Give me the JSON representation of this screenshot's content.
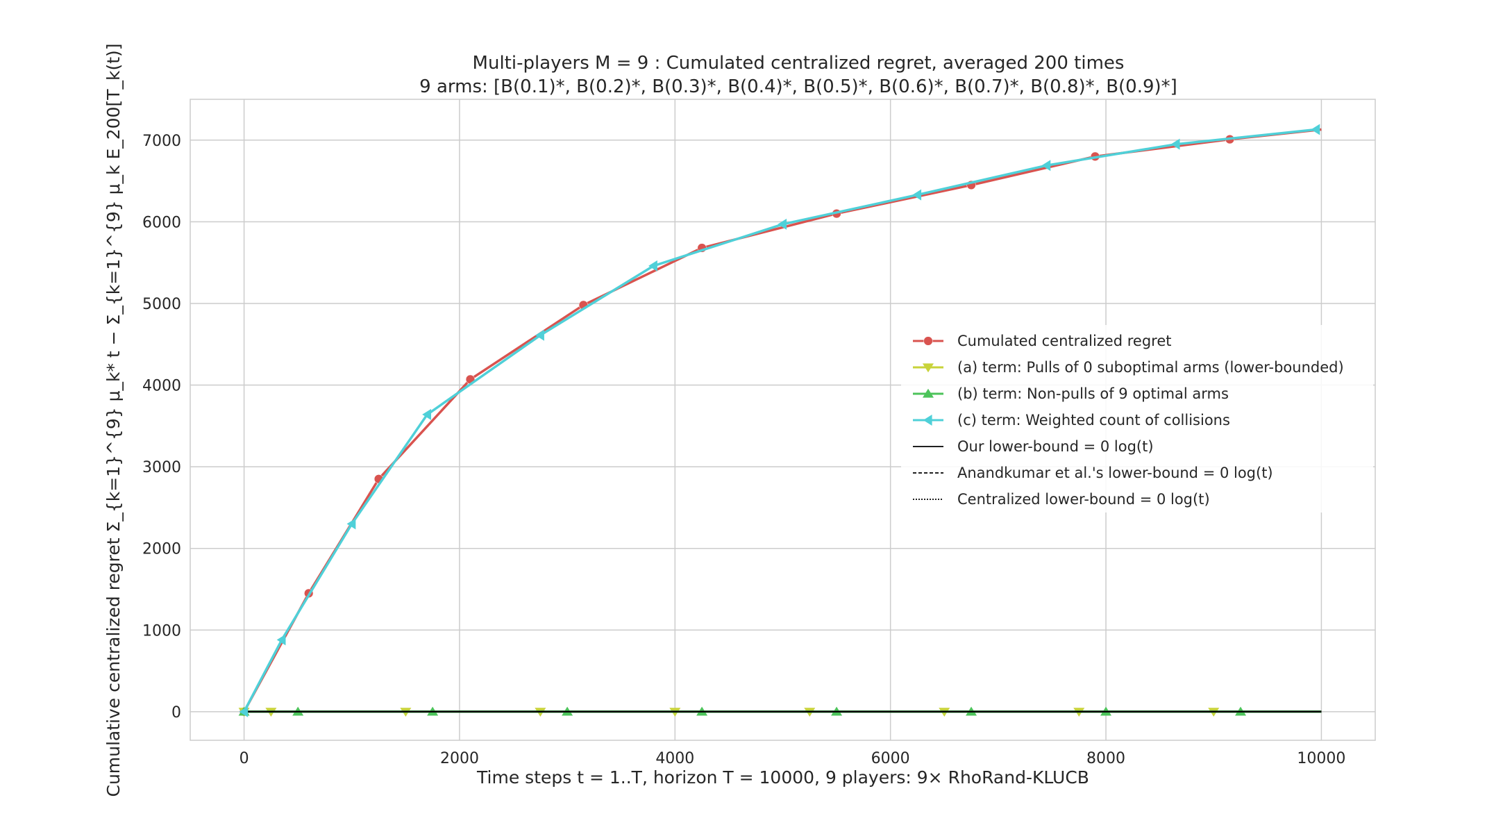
{
  "chart_data": {
    "type": "line",
    "title": "Multi-players M = 9 : Cumulated centralized regret, averaged 200 times",
    "subtitle": "9 arms: [B(0.1)*, B(0.2)*, B(0.3)*, B(0.4)*, B(0.5)*, B(0.6)*, B(0.7)*, B(0.8)*, B(0.9)*]",
    "xlabel": "Time steps t = 1..T, horizon T = 10000, 9 players: 9× RhoRand-KLUCB",
    "ylabel": "Cumulative centralized regret Σ_{k=1}^{9} μ_k* t − Σ_{k=1}^{9} μ_k E_200[T_k(t)]",
    "xlim": [
      -500,
      10500
    ],
    "ylim": [
      -350,
      7500
    ],
    "xticks": [
      "0",
      "2000",
      "4000",
      "6000",
      "8000",
      "10000"
    ],
    "yticks": [
      "0",
      "1000",
      "2000",
      "3000",
      "4000",
      "5000",
      "6000",
      "7000"
    ],
    "grid": true,
    "legend_position": "center-right",
    "series": [
      {
        "name": "Cumulated centralized regret",
        "color": "#d9534f",
        "marker": "circle",
        "x": [
          0,
          600,
          1250,
          2100,
          3150,
          4250,
          5500,
          6750,
          7900,
          9150,
          10000
        ],
        "y": [
          0,
          1450,
          2850,
          4070,
          4980,
          5680,
          6100,
          6450,
          6800,
          7010,
          7130
        ]
      },
      {
        "name": "(a) term: Pulls of 0 suboptimal arms (lower-bounded)",
        "color": "#c8d33a",
        "marker": "triangle-down",
        "x": [
          0,
          250,
          1500,
          2750,
          4000,
          5250,
          6500,
          7750,
          9000,
          10000
        ],
        "y": [
          0,
          0,
          0,
          0,
          0,
          0,
          0,
          0,
          0,
          0
        ]
      },
      {
        "name": "(b) term: Non-pulls of 9 optimal arms",
        "color": "#4cc35a",
        "marker": "triangle-up",
        "x": [
          0,
          500,
          1750,
          3000,
          4250,
          5500,
          6750,
          8000,
          9250,
          10000
        ],
        "y": [
          0,
          0,
          0,
          0,
          0,
          0,
          0,
          0,
          0,
          0
        ]
      },
      {
        "name": "(c) term: Weighted count of collisions",
        "color": "#4fd0d8",
        "marker": "triangle-left",
        "x": [
          0,
          350,
          1000,
          1700,
          2750,
          3800,
          5000,
          6250,
          7450,
          8650,
          9950
        ],
        "y": [
          0,
          880,
          2300,
          3640,
          4610,
          5460,
          5970,
          6330,
          6690,
          6950,
          7130
        ]
      },
      {
        "name": "Our lower-bound = 0 log(t)",
        "color": "#000000",
        "style": "solid",
        "x": [
          0,
          10000
        ],
        "y": [
          0,
          0
        ]
      },
      {
        "name": "Anandkumar et al.'s lower-bound = 0 log(t)",
        "color": "#000000",
        "style": "dashed",
        "x": [
          0,
          10000
        ],
        "y": [
          0,
          0
        ]
      },
      {
        "name": "Centralized lower-bound = 0 log(t)",
        "color": "#000000",
        "style": "dotted",
        "x": [
          0,
          10000
        ],
        "y": [
          0,
          0
        ]
      }
    ]
  }
}
